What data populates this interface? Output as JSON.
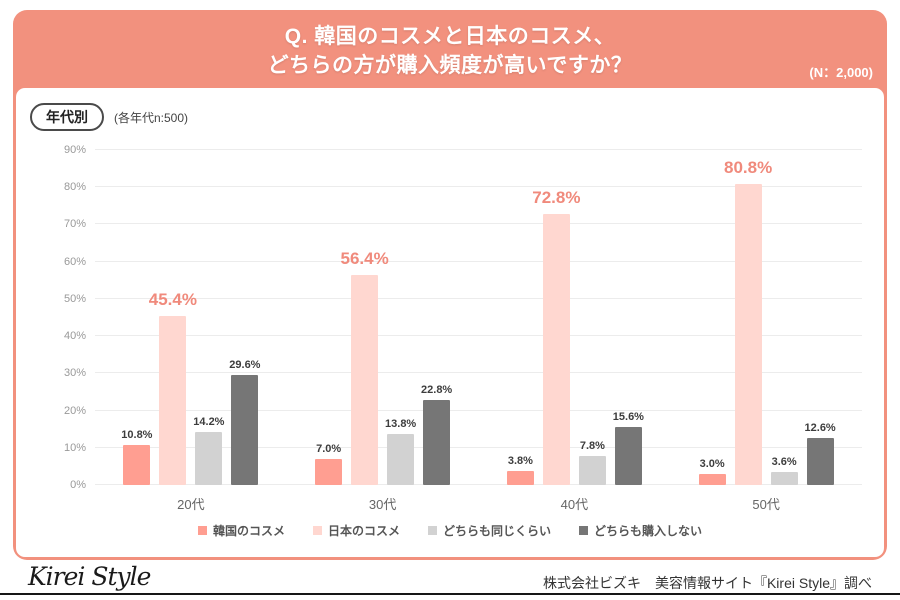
{
  "header": {
    "title_line1": "Q. 韓国のコスメと日本のコスメ、",
    "title_line2": "どちらの方が購入頻度が高いですか？",
    "sample_note": "(N：2,000)"
  },
  "panel": {
    "badge": "年代別",
    "badge_note": "(各年代n:500)"
  },
  "colors": {
    "header_bg": "#f2917e",
    "card_border": "#f2917e",
    "highlight_value_label": "#f08a7c",
    "gridline": "#ececec"
  },
  "chart_data": {
    "type": "bar",
    "title": "Q. 韓国のコスメと日本のコスメ、どちらの方が購入頻度が高いですか？",
    "categories": [
      "20代",
      "30代",
      "40代",
      "50代"
    ],
    "series": [
      {
        "name": "韓国のコスメ",
        "color": "#ff9e91",
        "values": [
          10.8,
          7.0,
          3.8,
          3.0
        ]
      },
      {
        "name": "日本のコスメ",
        "color": "#ffd7d0",
        "values": [
          45.4,
          56.4,
          72.8,
          80.8
        ],
        "emphasized": true
      },
      {
        "name": "どちらも同じくらい",
        "color": "#d2d2d2",
        "values": [
          14.2,
          13.8,
          7.8,
          3.6
        ]
      },
      {
        "name": "どちらも購入しない",
        "color": "#767676",
        "values": [
          29.6,
          22.8,
          15.6,
          12.6
        ]
      }
    ],
    "value_suffix": "%",
    "ylim": [
      0,
      90
    ],
    "yticks": [
      "0%",
      "10%",
      "20%",
      "30%",
      "40%",
      "50%",
      "60%",
      "70%",
      "80%",
      "90%"
    ],
    "grid": true,
    "legend_position": "bottom"
  },
  "footer": {
    "logo": "Kirei Style",
    "source": "株式会社ビズキ　美容情報サイト『Kirei Style』調べ"
  }
}
